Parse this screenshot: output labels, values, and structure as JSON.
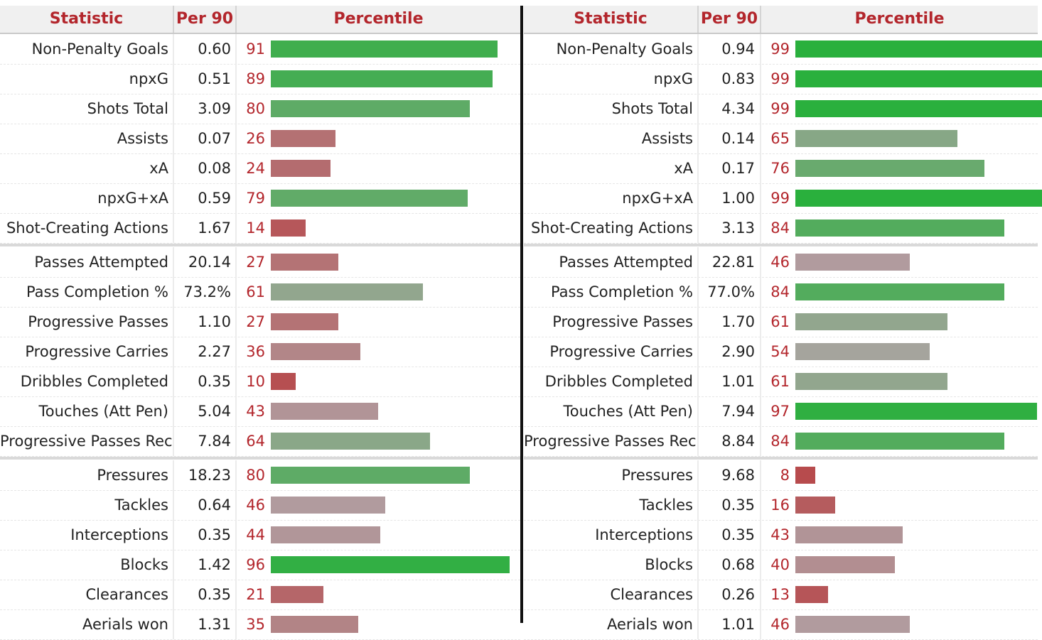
{
  "headers": {
    "statistic": "Statistic",
    "per90": "Per 90",
    "percentile": "Percentile"
  },
  "tables": [
    {
      "rows": [
        {
          "label": "Non-Penalty Goals",
          "per90": "0.60",
          "percentile": 91
        },
        {
          "label": "npxG",
          "per90": "0.51",
          "percentile": 89
        },
        {
          "label": "Shots Total",
          "per90": "3.09",
          "percentile": 80
        },
        {
          "label": "Assists",
          "per90": "0.07",
          "percentile": 26
        },
        {
          "label": "xA",
          "per90": "0.08",
          "percentile": 24
        },
        {
          "label": "npxG+xA",
          "per90": "0.59",
          "percentile": 79
        },
        {
          "label": "Shot-Creating Actions",
          "per90": "1.67",
          "percentile": 14
        },
        {
          "label": "Passes Attempted",
          "per90": "20.14",
          "percentile": 27
        },
        {
          "label": "Pass Completion %",
          "per90": "73.2%",
          "percentile": 61
        },
        {
          "label": "Progressive Passes",
          "per90": "1.10",
          "percentile": 27
        },
        {
          "label": "Progressive Carries",
          "per90": "2.27",
          "percentile": 36
        },
        {
          "label": "Dribbles Completed",
          "per90": "0.35",
          "percentile": 10
        },
        {
          "label": "Touches (Att Pen)",
          "per90": "5.04",
          "percentile": 43
        },
        {
          "label": "Progressive Passes Rec",
          "per90": "7.84",
          "percentile": 64
        },
        {
          "label": "Pressures",
          "per90": "18.23",
          "percentile": 80
        },
        {
          "label": "Tackles",
          "per90": "0.64",
          "percentile": 46
        },
        {
          "label": "Interceptions",
          "per90": "0.35",
          "percentile": 44
        },
        {
          "label": "Blocks",
          "per90": "1.42",
          "percentile": 96
        },
        {
          "label": "Clearances",
          "per90": "0.35",
          "percentile": 21
        },
        {
          "label": "Aerials won",
          "per90": "1.31",
          "percentile": 35
        }
      ]
    },
    {
      "rows": [
        {
          "label": "Non-Penalty Goals",
          "per90": "0.94",
          "percentile": 99
        },
        {
          "label": "npxG",
          "per90": "0.83",
          "percentile": 99
        },
        {
          "label": "Shots Total",
          "per90": "4.34",
          "percentile": 99
        },
        {
          "label": "Assists",
          "per90": "0.14",
          "percentile": 65
        },
        {
          "label": "xA",
          "per90": "0.17",
          "percentile": 76
        },
        {
          "label": "npxG+xA",
          "per90": "1.00",
          "percentile": 99
        },
        {
          "label": "Shot-Creating Actions",
          "per90": "3.13",
          "percentile": 84
        },
        {
          "label": "Passes Attempted",
          "per90": "22.81",
          "percentile": 46
        },
        {
          "label": "Pass Completion %",
          "per90": "77.0%",
          "percentile": 84
        },
        {
          "label": "Progressive Passes",
          "per90": "1.70",
          "percentile": 61
        },
        {
          "label": "Progressive Carries",
          "per90": "2.90",
          "percentile": 54
        },
        {
          "label": "Dribbles Completed",
          "per90": "1.01",
          "percentile": 61
        },
        {
          "label": "Touches (Att Pen)",
          "per90": "7.94",
          "percentile": 97
        },
        {
          "label": "Progressive Passes Rec",
          "per90": "8.84",
          "percentile": 84
        },
        {
          "label": "Pressures",
          "per90": "9.68",
          "percentile": 8
        },
        {
          "label": "Tackles",
          "per90": "0.35",
          "percentile": 16
        },
        {
          "label": "Interceptions",
          "per90": "0.35",
          "percentile": 43
        },
        {
          "label": "Blocks",
          "per90": "0.68",
          "percentile": 40
        },
        {
          "label": "Clearances",
          "per90": "0.26",
          "percentile": 13
        },
        {
          "label": "Aerials won",
          "per90": "1.01",
          "percentile": 46
        }
      ]
    }
  ],
  "colors": {
    "header_text": "#b3262c",
    "percentile_text": "#b3262c",
    "bar_low": "#b83a3c",
    "bar_mid": "#b0a3a6",
    "bar_high": "#27b03b"
  }
}
